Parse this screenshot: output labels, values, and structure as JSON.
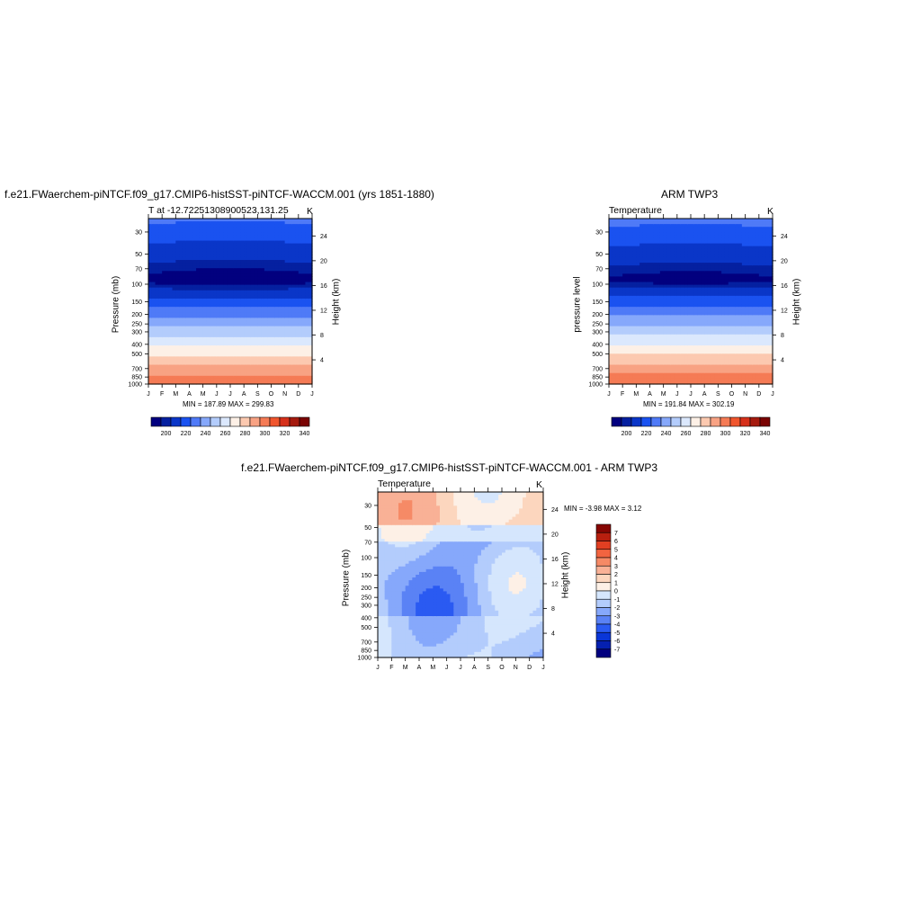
{
  "colors": {
    "temp_palette": [
      "#02007f",
      "#0520a0",
      "#0a36c8",
      "#1a52f0",
      "#4f7af7",
      "#86a8fb",
      "#b3ccfc",
      "#dbe8fd",
      "#fdf0e6",
      "#fcc9b0",
      "#f8a283",
      "#f57b55",
      "#f0552d",
      "#d6301a",
      "#a51a0e",
      "#7a0403"
    ],
    "diff_palette": [
      "#02007f",
      "#0520b0",
      "#0a36d8",
      "#2a5af2",
      "#5a82f5",
      "#86a8fb",
      "#b3ccfc",
      "#d5e6fd",
      "#fdf0e6",
      "#fcd6be",
      "#f9b196",
      "#f68a66",
      "#f26440",
      "#e13f22",
      "#b81f0f",
      "#860603"
    ]
  },
  "chart_data": [
    {
      "id": "model",
      "type": "heatmap",
      "title": "f.e21.FWaerchem-piNTCF.f09_g17.CMIP6-histSST-piNTCF-WACCM.001 (yrs 1851-1880)",
      "subtitle_left": "T at -12.72251308900523,131.25",
      "subtitle_right": "K",
      "ylabel": "Pressure (mb)",
      "ylabel_right": "Height (km)",
      "x_ticks": [
        "J",
        "F",
        "M",
        "A",
        "M",
        "J",
        "J",
        "A",
        "S",
        "O",
        "N",
        "D",
        "J"
      ],
      "y_ticks": [
        "30",
        "50",
        "70",
        "100",
        "150",
        "200",
        "250",
        "300",
        "400",
        "500",
        "700",
        "850",
        "1000"
      ],
      "y_ticks_right": [
        "24",
        "20",
        "16",
        "12",
        "8",
        "4"
      ],
      "min_max": "MIN = 187.89   MAX = 299.83",
      "colorbar_labels": [
        "200",
        "220",
        "240",
        "260",
        "280",
        "300",
        "320",
        "340"
      ]
    },
    {
      "id": "obs",
      "type": "heatmap",
      "title": "ARM TWP3",
      "subtitle_left": "Temperature",
      "subtitle_right": "K",
      "ylabel": "pressure level",
      "ylabel_right": "Height (km)",
      "x_ticks": [
        "J",
        "F",
        "M",
        "A",
        "M",
        "J",
        "J",
        "A",
        "S",
        "O",
        "N",
        "D",
        "J"
      ],
      "y_ticks": [
        "30",
        "50",
        "70",
        "100",
        "150",
        "200",
        "250",
        "300",
        "400",
        "500",
        "700",
        "850",
        "1000"
      ],
      "y_ticks_right": [
        "24",
        "20",
        "16",
        "12",
        "8",
        "4"
      ],
      "min_max": "MIN = 191.84   MAX = 302.19",
      "colorbar_labels": [
        "200",
        "220",
        "240",
        "260",
        "280",
        "300",
        "320",
        "340"
      ]
    },
    {
      "id": "diff",
      "type": "heatmap",
      "title": "f.e21.FWaerchem-piNTCF.f09_g17.CMIP6-histSST-piNTCF-WACCM.001 - ARM TWP3",
      "subtitle_left": "Temperature",
      "subtitle_right": "K",
      "ylabel": "Pressure (mb)",
      "ylabel_right": "Height (km)",
      "x_ticks": [
        "J",
        "F",
        "M",
        "A",
        "M",
        "J",
        "J",
        "A",
        "S",
        "O",
        "N",
        "D",
        "J"
      ],
      "y_ticks": [
        "30",
        "50",
        "70",
        "100",
        "150",
        "200",
        "250",
        "300",
        "400",
        "500",
        "700",
        "850",
        "1000"
      ],
      "y_ticks_right": [
        "24",
        "20",
        "16",
        "12",
        "8",
        "4"
      ],
      "min_max": "MIN =  -3.98   MAX =   3.12",
      "colorbar_labels": [
        "7",
        "6",
        "5",
        "4",
        "3",
        "2",
        "1",
        "0",
        "-1",
        "-2",
        "-3",
        "-4",
        "-5",
        "-6",
        "-7"
      ]
    }
  ]
}
